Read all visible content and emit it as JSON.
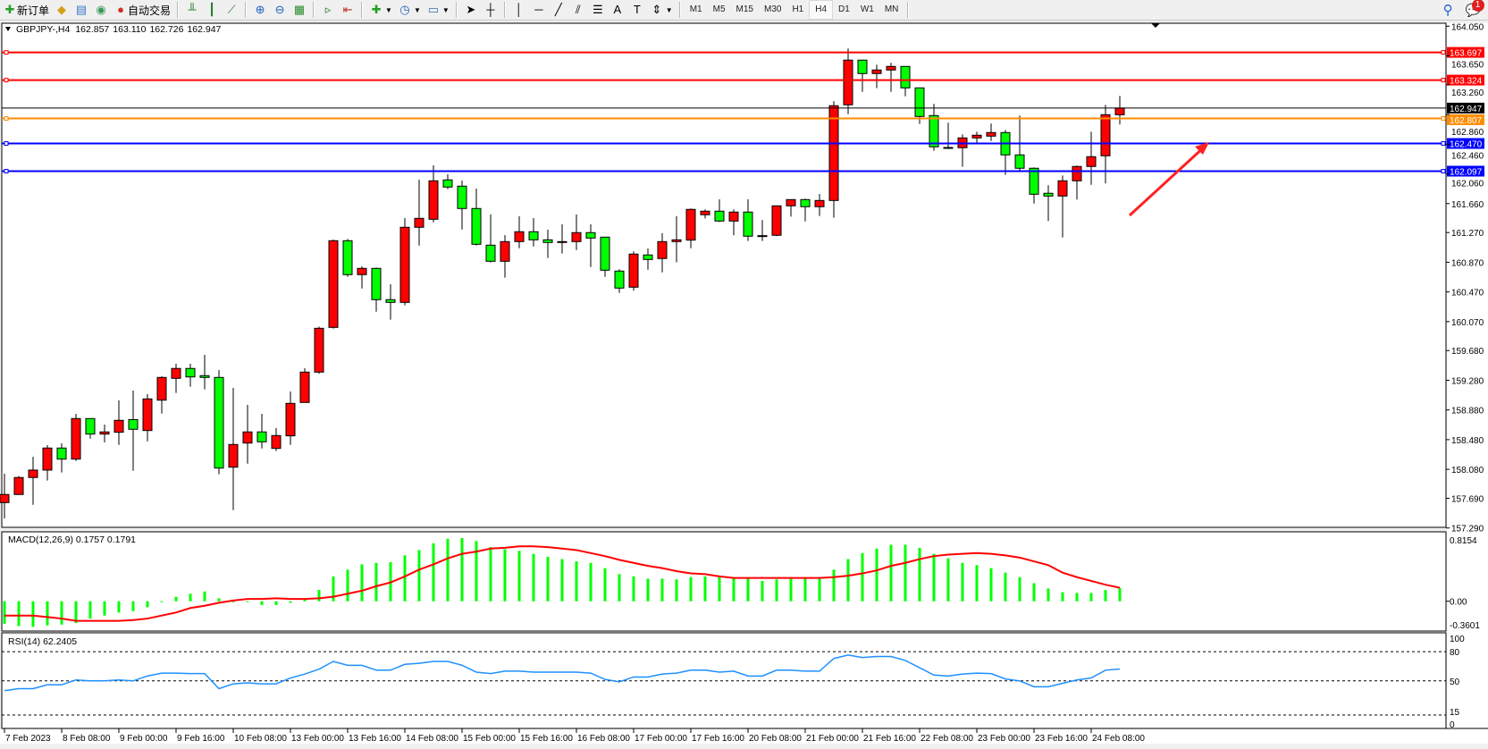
{
  "toolbar": {
    "new_order": "新订单",
    "auto_trading": "自动交易",
    "timeframes": [
      "M1",
      "M5",
      "M15",
      "M30",
      "H1",
      "H4",
      "D1",
      "W1",
      "MN"
    ],
    "active_timeframe": "H4",
    "notification_count": "1"
  },
  "header": {
    "symbol": "GBPJPY-,H4",
    "open": "162.857",
    "high": "163.110",
    "low": "162.726",
    "close": "162.947"
  },
  "colors": {
    "bull_candle": "#ff0000",
    "bear_candle": "#00ff00",
    "macd_histogram": "#00ff00",
    "macd_signal": "#ff0000",
    "rsi_line": "#1e90ff"
  },
  "price_axis": [
    "164.050",
    "163.650",
    "163.260",
    "162.860",
    "162.460",
    "162.060",
    "161.660",
    "161.270",
    "160.870",
    "160.470",
    "160.070",
    "159.680",
    "159.280",
    "158.880",
    "158.480",
    "158.080",
    "157.690",
    "157.290"
  ],
  "levels": [
    {
      "price": "163.697",
      "color": "#ff0000"
    },
    {
      "price": "163.324",
      "color": "#ff0000"
    },
    {
      "price": "162.947",
      "color": "#000000"
    },
    {
      "price": "162.807",
      "color": "#ff8c00"
    },
    {
      "price": "162.470",
      "color": "#0000ff"
    },
    {
      "price": "162.097",
      "color": "#0000ff"
    }
  ],
  "macd": {
    "label": "MACD(12,26,9) 0.1757 0.1791",
    "axis": [
      "0.8154",
      "0.00",
      "-0.3601"
    ]
  },
  "rsi": {
    "label": "RSI(14) 62.2405",
    "axis": [
      "100",
      "80",
      "50",
      "15",
      "0"
    ]
  },
  "time_axis": [
    "7 Feb 2023",
    "8 Feb 08:00",
    "9 Feb 00:00",
    "9 Feb 16:00",
    "10 Feb 08:00",
    "13 Feb 00:00",
    "13 Feb 16:00",
    "14 Feb 08:00",
    "15 Feb 00:00",
    "15 Feb 16:00",
    "16 Feb 08:00",
    "17 Feb 00:00",
    "17 Feb 16:00",
    "20 Feb 08:00",
    "21 Feb 00:00",
    "21 Feb 16:00",
    "22 Feb 08:00",
    "23 Feb 00:00",
    "23 Feb 16:00",
    "24 Feb 08:00"
  ],
  "chart_data": {
    "type": "candlestick",
    "ylim": [
      157.29,
      164.05
    ],
    "ohlc": [
      [
        157.632,
        158.021,
        157.419,
        157.741
      ],
      [
        157.741,
        157.99,
        157.741,
        157.97
      ],
      [
        157.97,
        158.25,
        157.603,
        158.07
      ],
      [
        158.07,
        158.407,
        157.929,
        158.367
      ],
      [
        158.367,
        158.431,
        158.037,
        158.218
      ],
      [
        158.218,
        158.828,
        158.193,
        158.764
      ],
      [
        158.764,
        158.764,
        158.494,
        158.555
      ],
      [
        158.555,
        158.684,
        158.443,
        158.584
      ],
      [
        158.58,
        159.009,
        158.41,
        158.74
      ],
      [
        158.75,
        159.141,
        158.061,
        158.62
      ],
      [
        158.603,
        159.093,
        158.458,
        159.029
      ],
      [
        159.012,
        159.334,
        158.832,
        159.318
      ],
      [
        159.306,
        159.502,
        159.109,
        159.439
      ],
      [
        159.439,
        159.502,
        159.193,
        159.325
      ],
      [
        159.342,
        159.623,
        159.157,
        159.318
      ],
      [
        159.318,
        159.418,
        158.013,
        158.097
      ],
      [
        158.109,
        159.177,
        157.531,
        158.415
      ],
      [
        158.434,
        158.948,
        158.157,
        158.584
      ],
      [
        158.584,
        158.828,
        158.362,
        158.451
      ],
      [
        158.362,
        158.635,
        158.326,
        158.535
      ],
      [
        158.531,
        159.129,
        158.41,
        158.969
      ],
      [
        158.981,
        159.442,
        158.981,
        159.39
      ],
      [
        159.39,
        160.004,
        159.366,
        159.98
      ],
      [
        159.992,
        161.176,
        159.976,
        161.16
      ],
      [
        161.16,
        161.184,
        160.674,
        160.703
      ],
      [
        160.703,
        160.815,
        160.517,
        160.787
      ],
      [
        160.787,
        160.799,
        160.204,
        160.366
      ],
      [
        160.366,
        160.574,
        160.096,
        160.329
      ],
      [
        160.329,
        161.465,
        160.289,
        161.341
      ],
      [
        161.341,
        161.983,
        161.095,
        161.461
      ],
      [
        161.449,
        162.175,
        161.408,
        161.967
      ],
      [
        161.979,
        162.055,
        161.854,
        161.883
      ],
      [
        161.895,
        161.97,
        161.312,
        161.594
      ],
      [
        161.594,
        161.862,
        161.095,
        161.112
      ],
      [
        161.1,
        161.513,
        160.867,
        160.883
      ],
      [
        160.883,
        161.236,
        160.662,
        161.148
      ],
      [
        161.148,
        161.489,
        161.059,
        161.281
      ],
      [
        161.281,
        161.465,
        161.083,
        161.172
      ],
      [
        161.172,
        161.308,
        160.927,
        161.136
      ],
      [
        161.148,
        161.381,
        160.987,
        161.148
      ],
      [
        161.148,
        161.513,
        161.035,
        161.269
      ],
      [
        161.269,
        161.381,
        160.806,
        161.196
      ],
      [
        161.208,
        161.208,
        160.674,
        160.763
      ],
      [
        160.751,
        160.775,
        160.457,
        160.522
      ],
      [
        160.534,
        161.016,
        160.486,
        160.98
      ],
      [
        160.968,
        161.056,
        160.77,
        160.907
      ],
      [
        160.92,
        161.26,
        160.734,
        161.148
      ],
      [
        161.148,
        161.489,
        160.871,
        161.172
      ],
      [
        161.168,
        161.594,
        161.059,
        161.582
      ],
      [
        161.51,
        161.582,
        161.461,
        161.558
      ],
      [
        161.558,
        161.718,
        161.413,
        161.425
      ],
      [
        161.425,
        161.582,
        161.233,
        161.546
      ],
      [
        161.546,
        161.718,
        161.156,
        161.221
      ],
      [
        161.228,
        161.437,
        161.156,
        161.228
      ],
      [
        161.233,
        161.63,
        161.221,
        161.63
      ],
      [
        161.63,
        161.714,
        161.485,
        161.714
      ],
      [
        161.714,
        161.726,
        161.42,
        161.618
      ],
      [
        161.618,
        161.79,
        161.493,
        161.702
      ],
      [
        161.702,
        163.039,
        161.469,
        162.979
      ],
      [
        162.991,
        163.749,
        162.865,
        163.593
      ],
      [
        163.593,
        163.593,
        163.166,
        163.412
      ],
      [
        163.412,
        163.532,
        163.215,
        163.46
      ],
      [
        163.46,
        163.557,
        163.166,
        163.508
      ],
      [
        163.508,
        163.508,
        163.106,
        163.219
      ],
      [
        163.219,
        163.219,
        162.733,
        162.834
      ],
      [
        162.846,
        163.003,
        162.372,
        162.425
      ],
      [
        162.416,
        162.75,
        162.396,
        162.416
      ],
      [
        162.413,
        162.593,
        162.155,
        162.545
      ],
      [
        162.545,
        162.629,
        162.461,
        162.581
      ],
      [
        162.569,
        162.738,
        162.504,
        162.617
      ],
      [
        162.617,
        162.653,
        162.047,
        162.316
      ],
      [
        162.316,
        162.846,
        162.088,
        162.136
      ],
      [
        162.136,
        162.148,
        161.661,
        161.786
      ],
      [
        161.799,
        161.907,
        161.425,
        161.762
      ],
      [
        161.762,
        162.039,
        161.204,
        161.967
      ],
      [
        161.967,
        162.172,
        161.714,
        162.16
      ],
      [
        162.16,
        162.629,
        161.914,
        162.292
      ],
      [
        162.304,
        162.99,
        161.931,
        162.858
      ],
      [
        162.857,
        163.11,
        162.726,
        162.947
      ]
    ],
    "macd_ylim": [
      -0.3601,
      0.8154
    ],
    "macd_histogram": [
      -0.3,
      -0.33,
      -0.34,
      -0.32,
      -0.31,
      -0.29,
      -0.23,
      -0.19,
      -0.15,
      -0.13,
      -0.08,
      -0.01,
      0.06,
      0.1,
      0.13,
      0.04,
      0.0,
      -0.01,
      -0.05,
      -0.05,
      -0.02,
      0.04,
      0.15,
      0.33,
      0.42,
      0.49,
      0.51,
      0.52,
      0.61,
      0.68,
      0.77,
      0.83,
      0.84,
      0.8,
      0.72,
      0.69,
      0.67,
      0.63,
      0.59,
      0.56,
      0.53,
      0.51,
      0.44,
      0.36,
      0.33,
      0.3,
      0.3,
      0.29,
      0.32,
      0.33,
      0.32,
      0.31,
      0.3,
      0.27,
      0.29,
      0.3,
      0.3,
      0.3,
      0.42,
      0.56,
      0.64,
      0.7,
      0.75,
      0.75,
      0.71,
      0.63,
      0.57,
      0.51,
      0.48,
      0.44,
      0.38,
      0.32,
      0.24,
      0.17,
      0.12,
      0.11,
      0.11,
      0.15,
      0.1757
    ],
    "macd_signal": [
      -0.19,
      -0.19,
      -0.19,
      -0.21,
      -0.23,
      -0.26,
      -0.26,
      -0.26,
      -0.26,
      -0.25,
      -0.23,
      -0.19,
      -0.15,
      -0.09,
      -0.06,
      -0.02,
      0.01,
      0.03,
      0.03,
      0.04,
      0.03,
      0.03,
      0.04,
      0.06,
      0.1,
      0.14,
      0.2,
      0.25,
      0.33,
      0.42,
      0.49,
      0.57,
      0.63,
      0.66,
      0.7,
      0.71,
      0.73,
      0.73,
      0.72,
      0.7,
      0.68,
      0.64,
      0.6,
      0.55,
      0.51,
      0.47,
      0.44,
      0.4,
      0.37,
      0.36,
      0.33,
      0.31,
      0.31,
      0.31,
      0.31,
      0.31,
      0.31,
      0.31,
      0.32,
      0.34,
      0.37,
      0.41,
      0.47,
      0.51,
      0.56,
      0.6,
      0.62,
      0.63,
      0.64,
      0.63,
      0.61,
      0.58,
      0.53,
      0.48,
      0.38,
      0.32,
      0.27,
      0.22,
      0.1791
    ],
    "rsi_ylim": [
      0,
      100
    ],
    "rsi_levels": [
      80,
      50,
      15
    ],
    "rsi": [
      40,
      42,
      42,
      46,
      46,
      51,
      50,
      50,
      51,
      50,
      55,
      58,
      58,
      57.5,
      57.5,
      42,
      47,
      48,
      47,
      47,
      53,
      57,
      62,
      70,
      66,
      66,
      61,
      61,
      67,
      68,
      70,
      70,
      66,
      59,
      57.5,
      60,
      60,
      59,
      59,
      59,
      59,
      58,
      51.5,
      49,
      54,
      54,
      57,
      58,
      61,
      61,
      59,
      60,
      55,
      55,
      61,
      61,
      60,
      60,
      73,
      76.5,
      74,
      75,
      75,
      71,
      63.5,
      56,
      55,
      57,
      58,
      57.5,
      52,
      50,
      44,
      44,
      47.5,
      51,
      53,
      61,
      62.2405
    ]
  }
}
